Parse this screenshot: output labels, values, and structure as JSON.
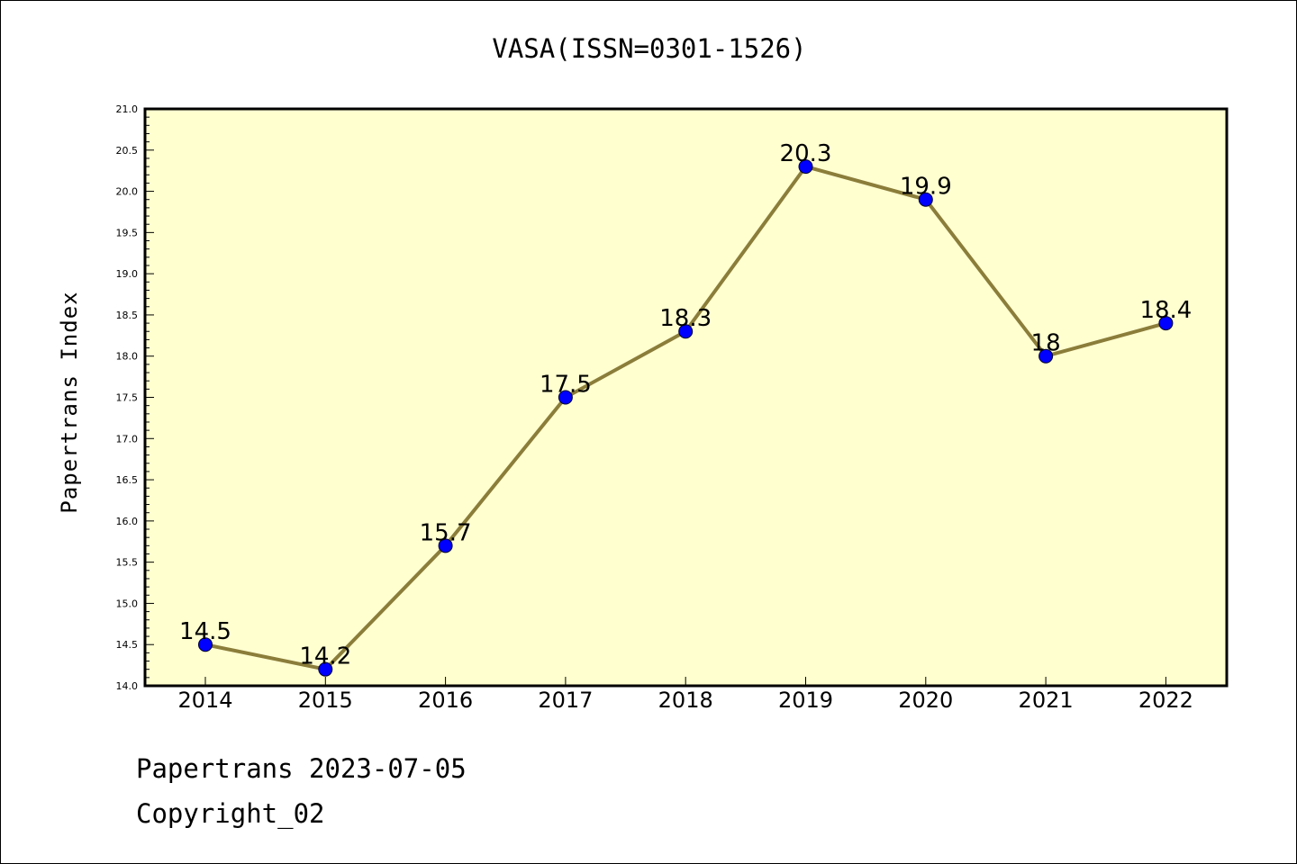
{
  "chart_data": {
    "type": "line",
    "title": "VASA(ISSN=0301-1526)",
    "xlabel": "",
    "ylabel": "Papertrans Index",
    "categories": [
      "2014",
      "2015",
      "2016",
      "2017",
      "2018",
      "2019",
      "2020",
      "2021",
      "2022"
    ],
    "series": [
      {
        "values": [
          14.5,
          14.2,
          15.7,
          17.5,
          18.3,
          20.3,
          19.9,
          18,
          18.4
        ],
        "labels": [
          "14.5",
          "14.2",
          "15.7",
          "17.5",
          "18.3",
          "20.3",
          "19.9",
          "18",
          "18.4"
        ],
        "line_color": "#8b7d3a",
        "marker_color": "#0000ff"
      }
    ],
    "ylim": [
      14.0,
      21.0
    ],
    "yticks": [
      "14.0",
      "14.5",
      "15.0",
      "15.5",
      "16.0",
      "16.5",
      "17.0",
      "17.5",
      "18.0",
      "18.5",
      "19.0",
      "19.5",
      "20.0",
      "20.5",
      "21.0"
    ],
    "grid": false,
    "plot_background": "#ffffd0"
  },
  "footer": {
    "line1": "Papertrans 2023-07-05",
    "line2": "Copyright_02"
  }
}
